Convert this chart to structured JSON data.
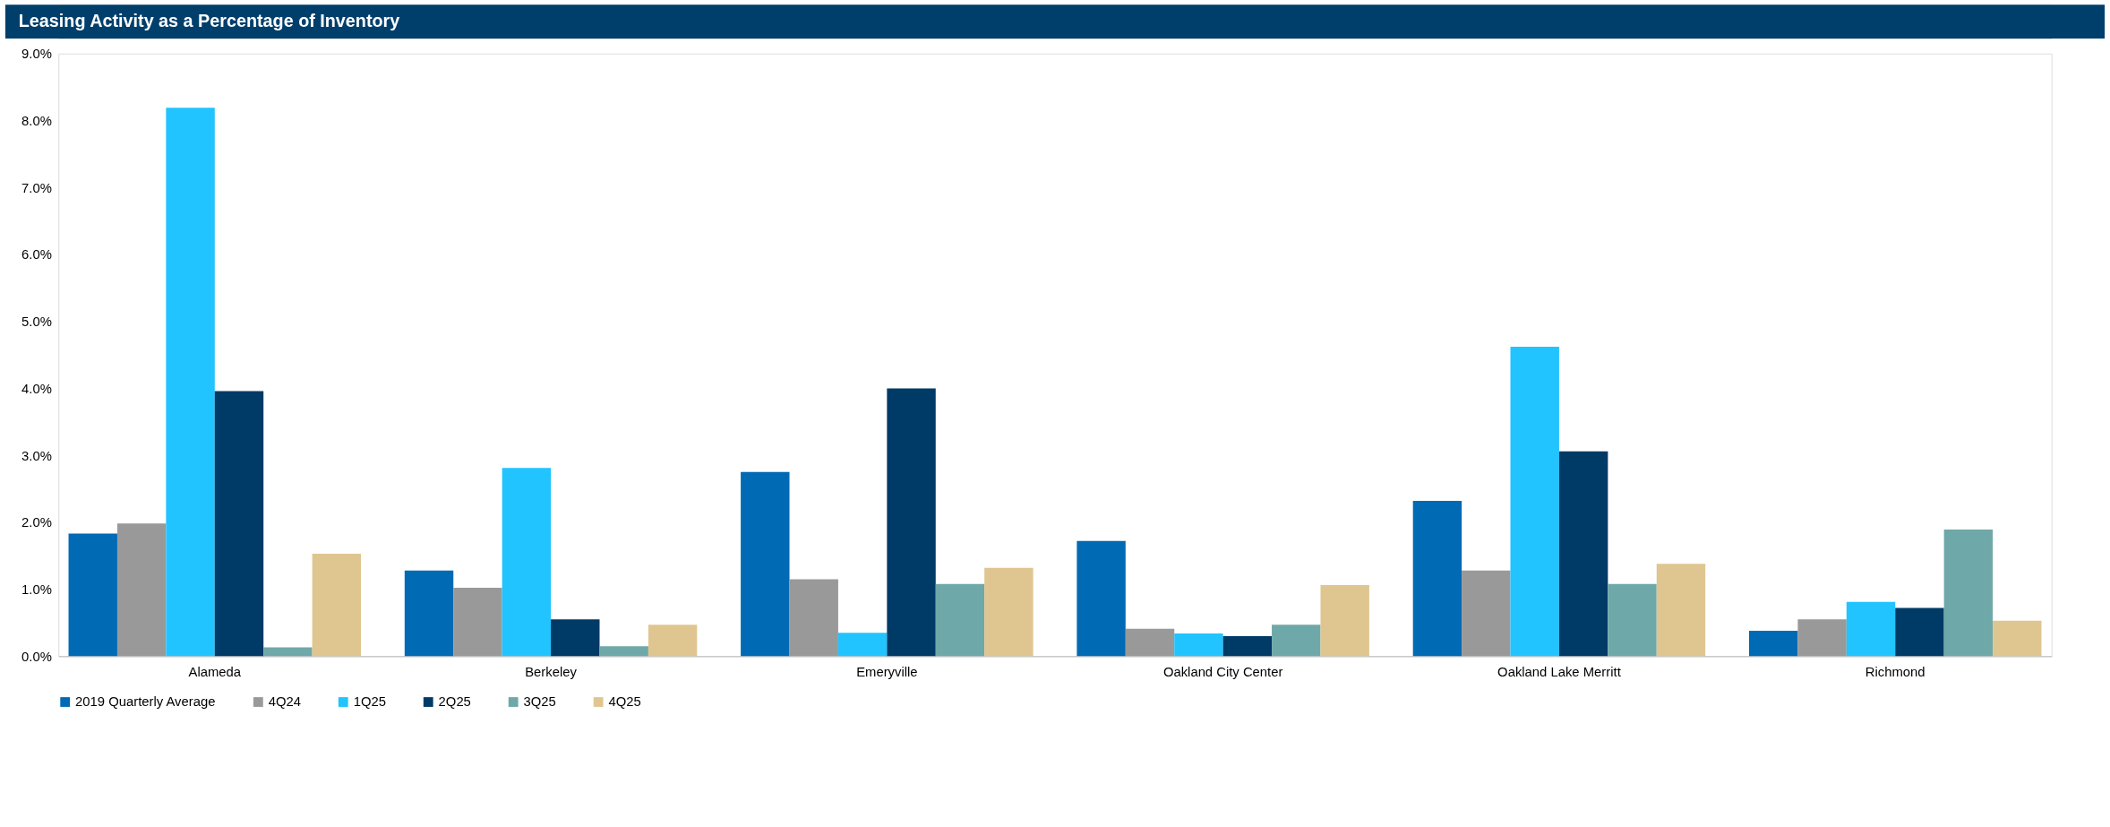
{
  "chart_data": {
    "type": "bar",
    "title": "Leasing Activity as a Percentage of Inventory",
    "categories": [
      "Alameda",
      "Berkeley",
      "Emeryville",
      "Oakland City Center",
      "Oakland Lake Merritt",
      "Richmond"
    ],
    "series": [
      {
        "name": "2019 Quarterly Average",
        "color": "#006ab4",
        "values": [
          1.83,
          1.28,
          2.75,
          1.72,
          2.32,
          0.38
        ]
      },
      {
        "name": "4Q24",
        "color": "#999999",
        "values": [
          1.98,
          1.02,
          1.15,
          0.41,
          1.28,
          0.55
        ]
      },
      {
        "name": "1Q25",
        "color": "#21c4ff",
        "values": [
          8.19,
          2.81,
          0.35,
          0.34,
          4.62,
          0.81
        ]
      },
      {
        "name": "2Q25",
        "color": "#003a66",
        "values": [
          3.96,
          0.55,
          4.0,
          0.3,
          3.06,
          0.72
        ]
      },
      {
        "name": "3Q25",
        "color": "#6fa8a8",
        "values": [
          0.13,
          0.15,
          1.08,
          0.47,
          1.08,
          1.89
        ]
      },
      {
        "name": "4Q25",
        "color": "#dfc690",
        "values": [
          1.53,
          0.47,
          1.32,
          1.06,
          1.38,
          0.53
        ]
      }
    ],
    "ylim": [
      0,
      9
    ],
    "yticks": [
      {
        "value": 0,
        "label": "0.0%"
      },
      {
        "value": 1,
        "label": "1.0%"
      },
      {
        "value": 2,
        "label": "2.0%"
      },
      {
        "value": 3,
        "label": "3.0%"
      },
      {
        "value": 4,
        "label": "4.0%"
      },
      {
        "value": 5,
        "label": "5.0%"
      },
      {
        "value": 6,
        "label": "6.0%"
      },
      {
        "value": 7,
        "label": "7.0%"
      },
      {
        "value": 8,
        "label": "8.0%"
      },
      {
        "value": 9,
        "label": "9.0%"
      }
    ],
    "grid": false,
    "legend": "bottom"
  }
}
